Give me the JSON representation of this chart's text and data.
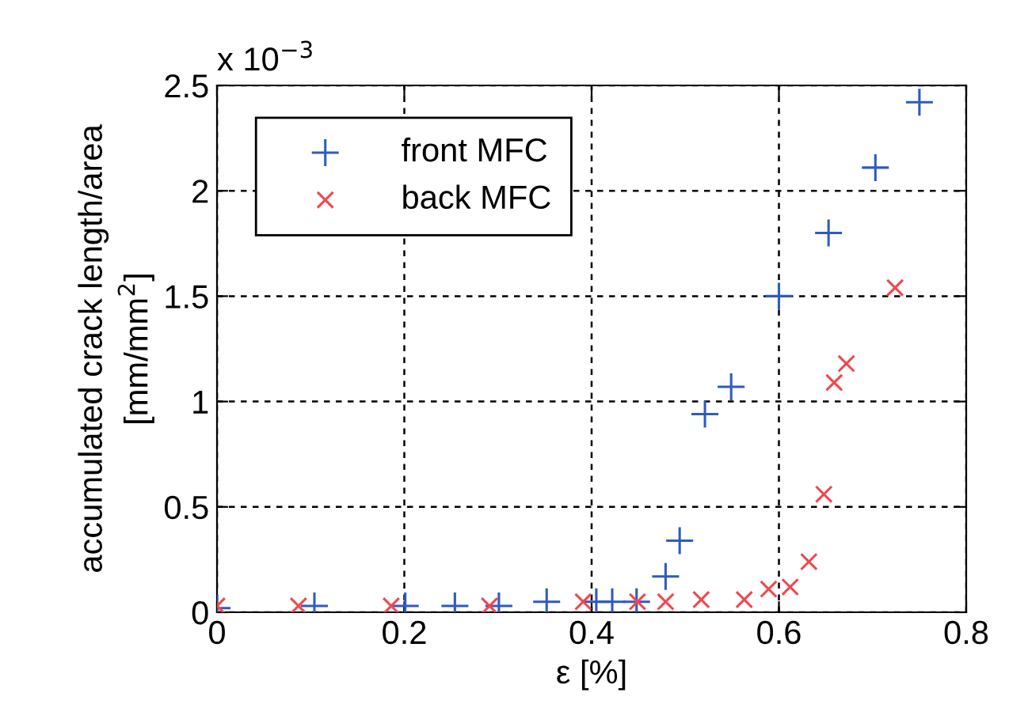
{
  "chart_data": {
    "type": "scatter",
    "xlabel": "ε [%]",
    "ylabel": "accumulated crack length/area\n[mm/mm$^{2}$]",
    "annotations": [
      "x 10$^{−3}$"
    ],
    "xlim": [
      0,
      0.8
    ],
    "xticks": [
      0,
      0.2,
      0.4,
      0.6,
      0.8
    ],
    "ylim": [
      0,
      2.5
    ],
    "yticks": [
      0,
      0.5,
      1,
      1.5,
      2,
      2.5
    ],
    "grid": true,
    "legend": "top left",
    "series": [
      {
        "name": "front MFC",
        "color": "#2e5bbf",
        "marker": "plus",
        "x": [
          0.0,
          0.104,
          0.201,
          0.254,
          0.301,
          0.352,
          0.405,
          0.422,
          0.448,
          0.479,
          0.494,
          0.521,
          0.549,
          0.6,
          0.653,
          0.703,
          0.75
        ],
        "values": [
          0.02,
          0.03,
          0.03,
          0.03,
          0.03,
          0.05,
          0.05,
          0.05,
          0.05,
          0.17,
          0.34,
          0.94,
          1.07,
          1.5,
          1.8,
          2.11,
          2.42
        ]
      },
      {
        "name": "back MFC",
        "color": "#f0474f",
        "marker": "cross",
        "x": [
          0.0,
          0.087,
          0.186,
          0.291,
          0.391,
          0.449,
          0.479,
          0.517,
          0.563,
          0.589,
          0.612,
          0.632,
          0.648,
          0.659,
          0.672,
          0.724
        ],
        "values": [
          0.03,
          0.03,
          0.03,
          0.03,
          0.05,
          0.05,
          0.05,
          0.06,
          0.06,
          0.11,
          0.12,
          0.24,
          0.56,
          1.09,
          1.18,
          1.54
        ]
      }
    ]
  }
}
